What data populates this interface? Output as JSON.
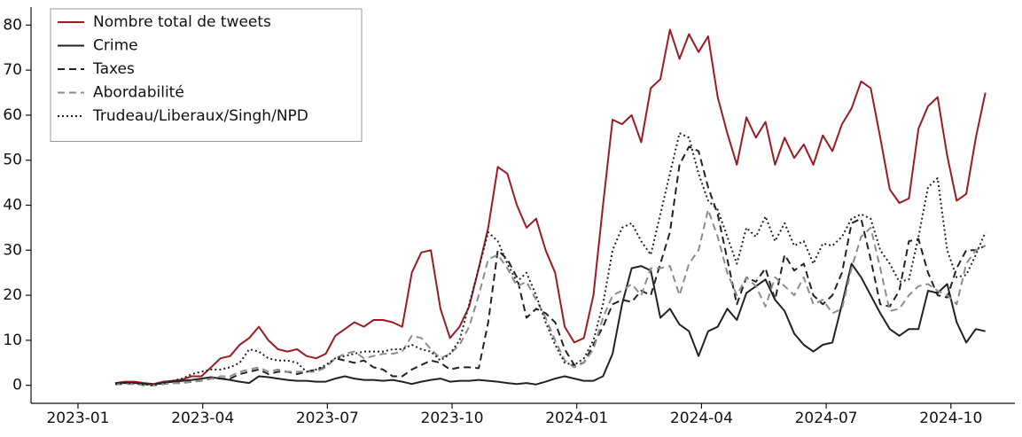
{
  "chart_data": {
    "type": "line",
    "x": [
      0.9,
      1.13,
      1.36,
      1.59,
      1.82,
      2.05,
      2.28,
      2.51,
      2.74,
      2.97,
      3.2,
      3.43,
      3.66,
      3.89,
      4.12,
      4.35,
      4.58,
      4.81,
      5.04,
      5.27,
      5.5,
      5.73,
      5.96,
      6.19,
      6.42,
      6.65,
      6.88,
      7.11,
      7.34,
      7.57,
      7.8,
      8.03,
      8.26,
      8.49,
      8.72,
      8.95,
      9.18,
      9.41,
      9.64,
      9.87,
      10.1,
      10.33,
      10.56,
      10.79,
      11.02,
      11.25,
      11.48,
      11.71,
      11.94,
      12.17,
      12.4,
      12.63,
      12.86,
      13.09,
      13.32,
      13.55,
      13.78,
      14.01,
      14.24,
      14.47,
      14.7,
      14.93,
      15.16,
      15.39,
      15.62,
      15.85,
      16.08,
      16.31,
      16.54,
      16.77,
      17.0,
      17.23,
      17.46,
      17.69,
      17.92,
      18.15,
      18.38,
      18.61,
      18.84,
      19.07,
      19.3,
      19.53,
      19.76,
      19.99,
      20.22,
      20.45,
      20.68,
      20.91,
      21.14,
      21.37,
      21.6,
      21.83
    ],
    "xlim": [
      -1.13,
      22.54
    ],
    "xticks": [
      {
        "value": 0,
        "label": "2023-01"
      },
      {
        "value": 3,
        "label": "2023-04"
      },
      {
        "value": 6,
        "label": "2023-07"
      },
      {
        "value": 9,
        "label": "2023-10"
      },
      {
        "value": 12,
        "label": "2024-01"
      },
      {
        "value": 15,
        "label": "2024-04"
      },
      {
        "value": 18,
        "label": "2024-07"
      },
      {
        "value": 21,
        "label": "2024-10"
      }
    ],
    "ylim": [
      -4,
      84
    ],
    "yticks": [
      0,
      10,
      20,
      30,
      40,
      50,
      60,
      70,
      80
    ],
    "legend": "upper left",
    "series": [
      {
        "name": "Nombre total de tweets",
        "color": "#9b1c20",
        "linestyle": "solid",
        "values": [
          0.5,
          0.8,
          0.8,
          0.5,
          0.3,
          0.8,
          1,
          1.3,
          2,
          2,
          4,
          6,
          6.5,
          9,
          10.5,
          13,
          10,
          8,
          7.5,
          8,
          6.5,
          6,
          7,
          11,
          12.5,
          14,
          13,
          14.5,
          14.5,
          14,
          13,
          25,
          29.5,
          30,
          17,
          10.5,
          13,
          17.5,
          26,
          35,
          48.5,
          47,
          40,
          35,
          37,
          30,
          25,
          13,
          9.5,
          10.5,
          20,
          40,
          59,
          58,
          60,
          54,
          66,
          68,
          79,
          72.5,
          78,
          74,
          77.5,
          64,
          56,
          49,
          59.5,
          55,
          58.5,
          49,
          55,
          50.5,
          53.5,
          49,
          55.5,
          52,
          58,
          61.5,
          67.5,
          66,
          55,
          43.5,
          40.5,
          41.5,
          57,
          62,
          64,
          51,
          41,
          42.5,
          55,
          65
        ]
      },
      {
        "name": "Crime",
        "color": "#222222",
        "linestyle": "solid",
        "values": [
          0.5,
          0.5,
          0.5,
          0.3,
          0.2,
          0.5,
          0.8,
          1,
          1.2,
          1.5,
          1.8,
          1.5,
          1.2,
          0.8,
          0.5,
          2,
          1.8,
          1.5,
          1.2,
          1,
          1,
          0.8,
          0.8,
          1.5,
          2,
          1.5,
          1.2,
          1.2,
          1,
          1.2,
          0.8,
          0.3,
          0.8,
          1.2,
          1.5,
          0.8,
          1,
          1,
          1.2,
          1,
          0.8,
          0.5,
          0.3,
          0.5,
          0.2,
          0.8,
          1.5,
          2,
          1.5,
          1,
          1,
          2,
          7,
          18,
          26,
          26.5,
          25.5,
          15,
          17,
          13.5,
          12,
          6.5,
          12,
          13,
          17,
          14.5,
          20.5,
          22,
          23.5,
          19,
          16.5,
          11.5,
          9,
          7.5,
          9,
          9.5,
          18,
          27,
          24,
          20,
          16,
          12.5,
          11,
          12.5,
          12.5,
          21,
          20.5,
          22.5,
          14,
          9.5,
          12.5,
          12
        ]
      },
      {
        "name": "Taxes",
        "color": "#222222",
        "linestyle": "dashed",
        "values": [
          0.3,
          0.5,
          0.5,
          0.3,
          0,
          0.3,
          0.5,
          0.5,
          0.8,
          1,
          1.5,
          1.5,
          1.5,
          2.5,
          3,
          3.5,
          2.5,
          3,
          3,
          2.5,
          3,
          3.5,
          4,
          6,
          5.5,
          5,
          5.5,
          4,
          3.5,
          2,
          2,
          3.5,
          4.5,
          5.5,
          5,
          3.5,
          4,
          4,
          3.8,
          14,
          30,
          28,
          24,
          15,
          17,
          16,
          14,
          8,
          4.5,
          5,
          9,
          13,
          18,
          19,
          18.5,
          21,
          20,
          27,
          34,
          49,
          53,
          52,
          44,
          38,
          28,
          18,
          24,
          23,
          26,
          19,
          29,
          25.5,
          27,
          20,
          18,
          20,
          25,
          36,
          37,
          28,
          18,
          17.5,
          21,
          32,
          32.5,
          25,
          20,
          19.5,
          26,
          30,
          30,
          31
        ]
      },
      {
        "name": "Abordabilité",
        "color": "#8c8c8c",
        "linestyle": "dashed",
        "values": [
          0.2,
          0.3,
          0.3,
          0,
          0,
          0.3,
          0.5,
          0.5,
          0.8,
          1,
          1.5,
          2,
          2,
          3,
          3.5,
          4,
          3,
          3.5,
          3,
          3,
          3,
          3,
          4,
          6,
          7,
          7.5,
          6,
          6.5,
          7,
          7,
          7.5,
          11,
          10.5,
          8,
          6,
          7,
          9,
          13,
          20,
          28,
          29,
          26,
          22,
          23,
          19,
          15,
          10,
          5.5,
          4,
          5,
          8,
          15,
          20,
          21,
          22.5,
          20,
          26,
          26,
          26.5,
          20,
          27,
          30,
          39,
          33,
          25,
          20,
          24,
          22,
          17.5,
          24,
          22,
          20,
          24,
          18,
          19,
          16,
          17,
          26,
          33,
          35,
          26,
          16.5,
          17,
          20,
          22,
          22.5,
          21,
          20,
          18,
          27,
          30,
          31
        ]
      },
      {
        "name": "Trudeau/Liberaux/Singh/NPD",
        "color": "#222222",
        "linestyle": "dotted",
        "values": [
          0.3,
          0.5,
          0.5,
          0.2,
          0,
          0.5,
          1,
          1.5,
          2.5,
          3,
          3.5,
          3.5,
          4,
          5,
          8,
          7.5,
          6,
          5.5,
          5.5,
          5,
          3,
          3.5,
          4.5,
          6,
          6.5,
          7,
          7.5,
          7.5,
          7.5,
          8,
          8,
          9,
          8,
          7.5,
          5.5,
          7,
          10,
          18,
          26,
          34,
          32,
          27,
          23,
          25,
          20,
          14,
          9,
          5,
          4.5,
          6,
          10,
          18,
          30,
          35,
          36,
          32,
          29,
          38,
          47,
          56,
          55,
          47,
          41,
          39,
          33,
          27,
          35,
          33,
          37.5,
          32,
          36,
          31,
          32,
          27,
          31.5,
          31,
          33,
          37,
          38,
          37,
          30,
          27,
          23,
          23.5,
          33,
          44,
          46,
          30,
          24,
          24.5,
          29,
          34
        ]
      }
    ]
  }
}
